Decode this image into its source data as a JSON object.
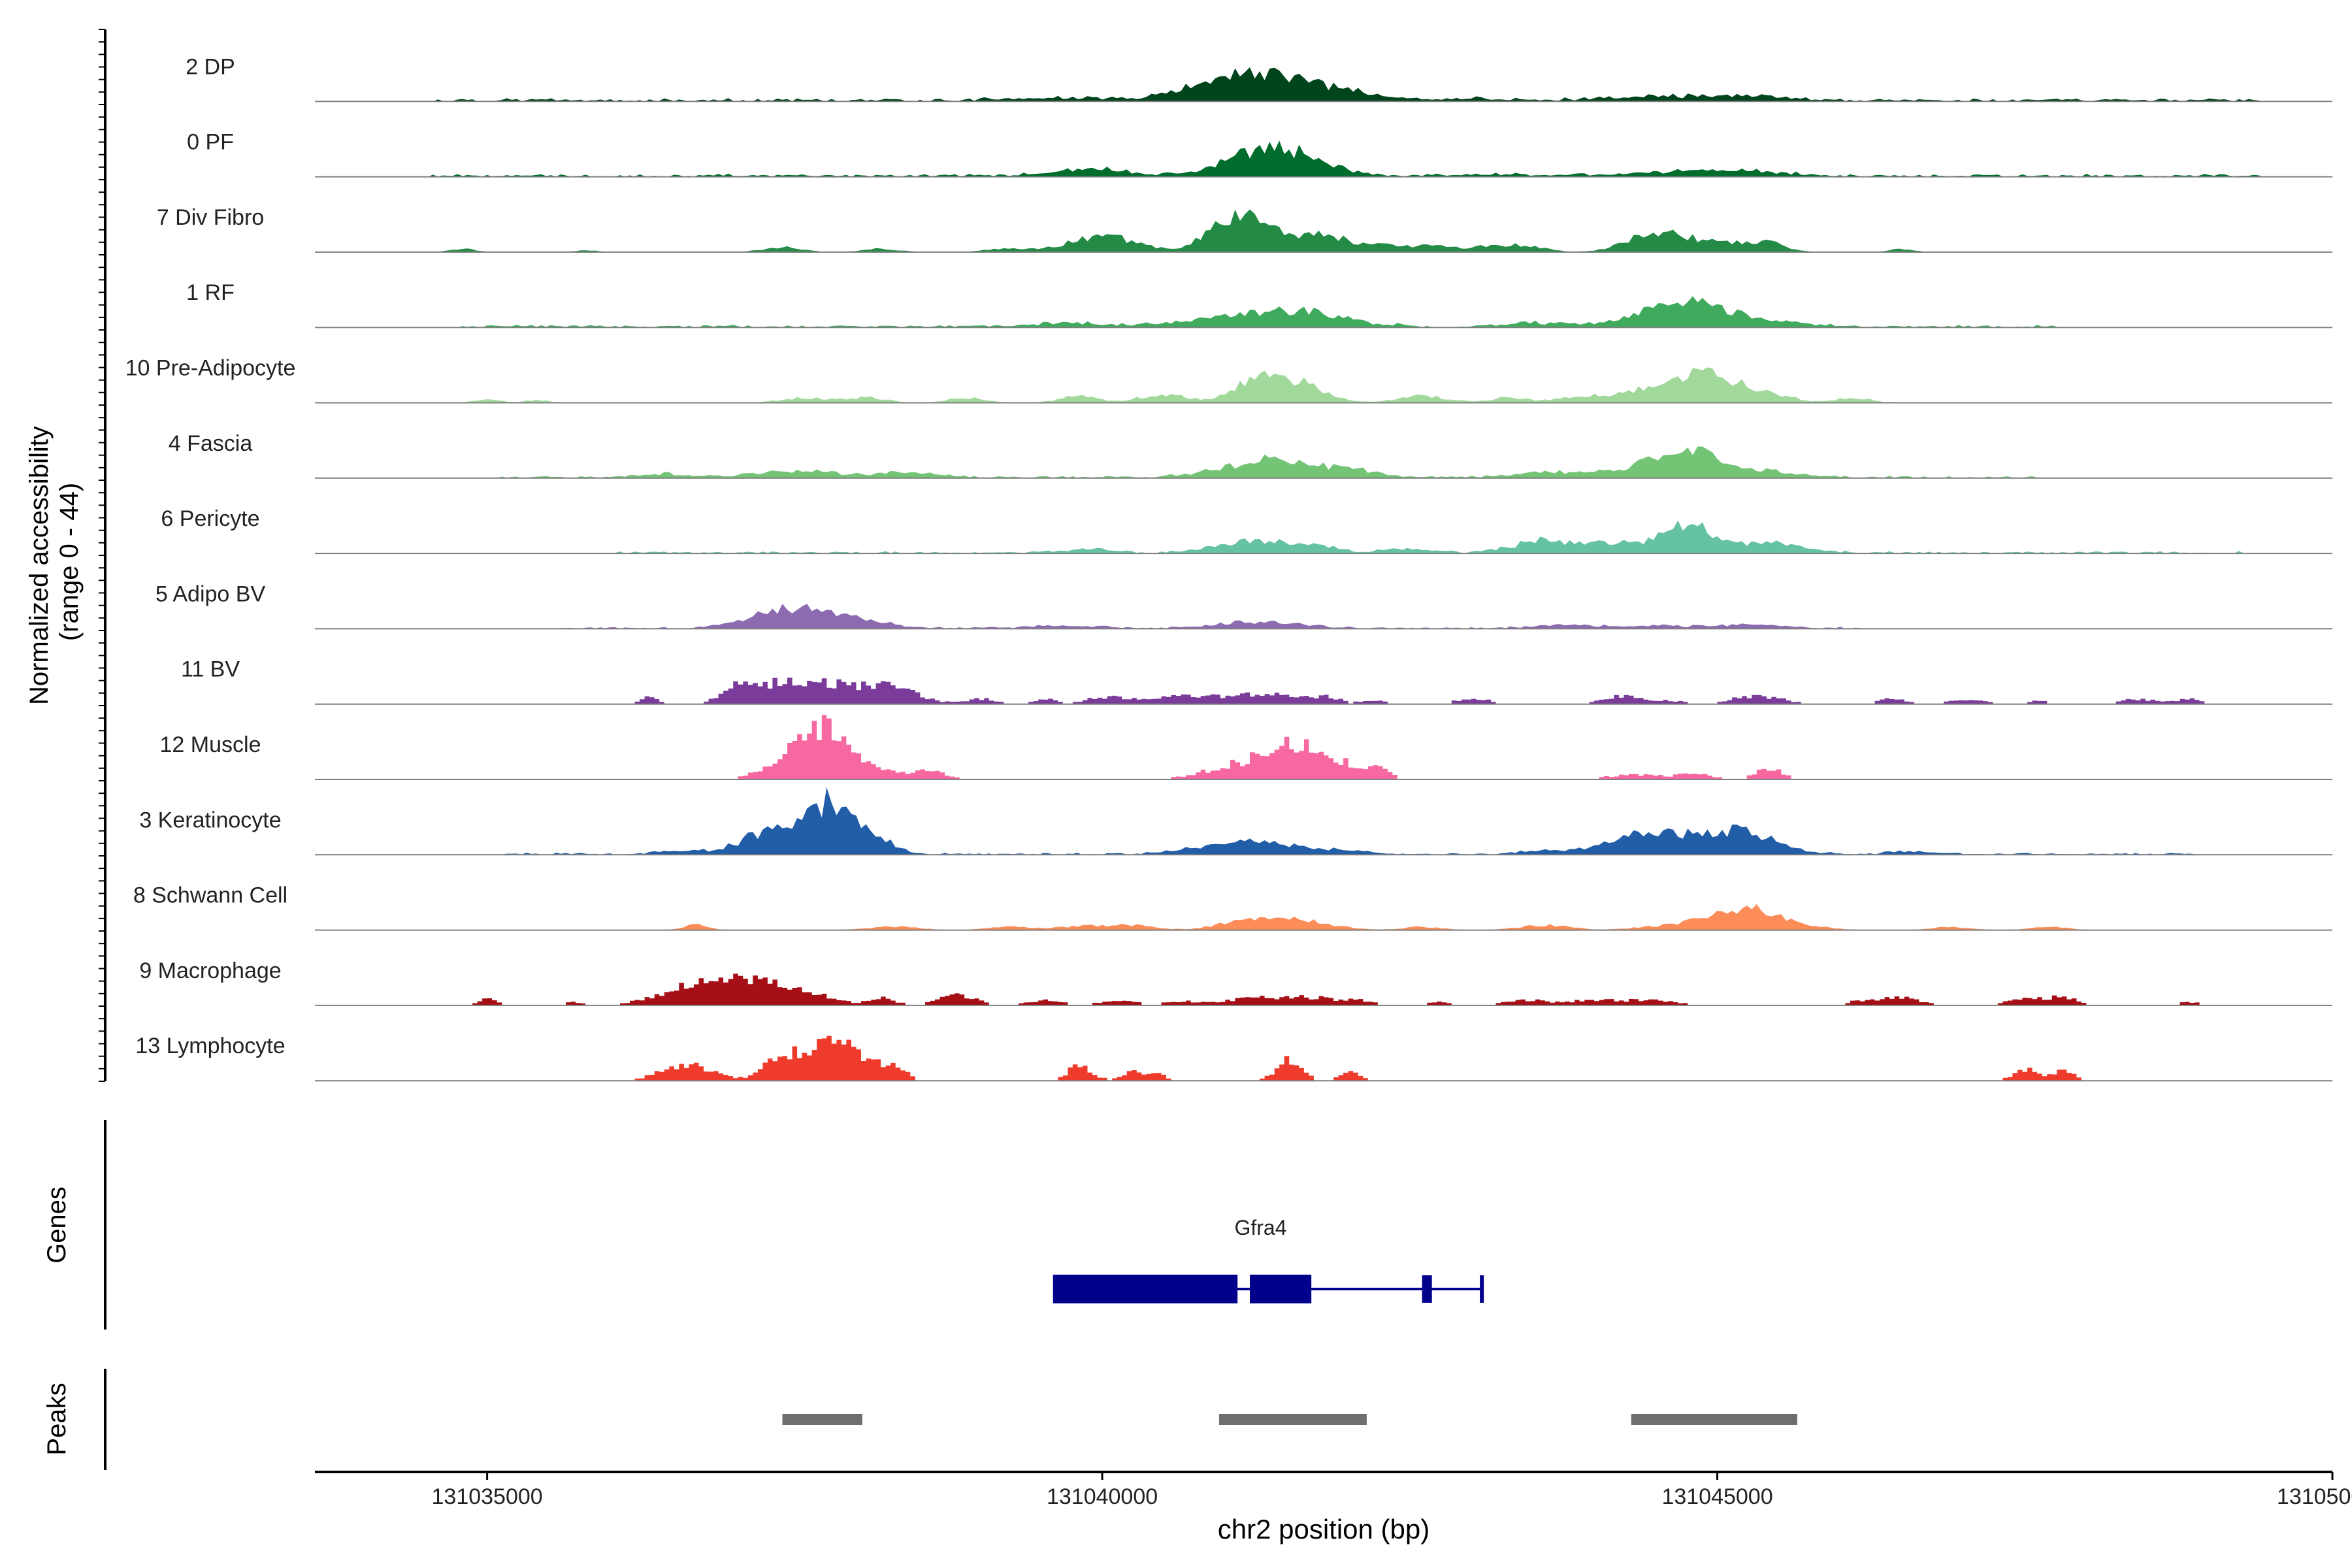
{
  "chart_data": {
    "type": "area",
    "ylabel_lines": [
      "Normalized accessibility",
      "(range 0 - 44)"
    ],
    "xlabel": "chr2 position (bp)",
    "xlim": [
      131033600,
      131050000
    ],
    "ylim": [
      0,
      44
    ],
    "x_ticks": [
      131035000,
      131040000,
      131045000,
      131050000
    ],
    "x_tick_labels": [
      "131035000",
      "131040000",
      "131045000",
      "131050000"
    ],
    "tracks": [
      {
        "name": "2 DP",
        "color": "#00441b",
        "style": "smooth",
        "noise": [
          131034500,
          131049400,
          1.6
        ],
        "peaks": [
          [
            131041400,
            500,
            13
          ],
          [
            131041000,
            300,
            5
          ],
          [
            131039600,
            400,
            1.5
          ],
          [
            131044700,
            500,
            2.5
          ],
          [
            131045400,
            300,
            1.5
          ],
          [
            131043000,
            300,
            1
          ]
        ]
      },
      {
        "name": "0 PF",
        "color": "#006d2c",
        "style": "smooth",
        "noise": [
          131034500,
          131049400,
          1.5
        ],
        "peaks": [
          [
            131041500,
            300,
            14
          ],
          [
            131041100,
            250,
            6
          ],
          [
            131039900,
            300,
            4
          ],
          [
            131044700,
            400,
            2.5
          ],
          [
            131045300,
            300,
            2
          ],
          [
            131043200,
            300,
            1
          ]
        ]
      },
      {
        "name": "7 Div Fibro",
        "color": "#238b45",
        "style": "smooth",
        "noise": [
          131034600,
          131047000,
          0
        ],
        "peaks": [
          [
            131041000,
            200,
            14
          ],
          [
            131041300,
            200,
            14
          ],
          [
            131041800,
            200,
            10
          ],
          [
            131039900,
            250,
            7
          ],
          [
            131040200,
            200,
            4
          ],
          [
            131042300,
            200,
            4
          ],
          [
            131043200,
            200,
            4
          ],
          [
            131042700,
            150,
            3
          ],
          [
            131044400,
            200,
            7
          ],
          [
            131044700,
            250,
            8
          ],
          [
            131045400,
            150,
            6
          ],
          [
            131045100,
            150,
            3
          ],
          [
            131037400,
            150,
            3
          ],
          [
            131038200,
            150,
            2
          ],
          [
            131039200,
            150,
            2
          ],
          [
            131034800,
            100,
            2
          ],
          [
            131035800,
            100,
            1
          ],
          [
            131046500,
            100,
            2
          ],
          [
            131043500,
            150,
            2
          ]
        ]
      },
      {
        "name": "1 RF",
        "color": "#41ab5d",
        "style": "smooth",
        "noise": [
          131034800,
          131047800,
          1.4
        ],
        "peaks": [
          [
            131041500,
            400,
            10
          ],
          [
            131044800,
            300,
            14
          ],
          [
            131044400,
            200,
            4
          ],
          [
            131045400,
            300,
            3
          ],
          [
            131043600,
            300,
            2
          ],
          [
            131039700,
            300,
            2
          ],
          [
            131040700,
            300,
            2
          ]
        ]
      },
      {
        "name": "10 Pre-Adipocyte",
        "color": "#a1d99b",
        "style": "smooth",
        "noise": [
          131034800,
          131046400,
          0
        ],
        "peaks": [
          [
            131041500,
            250,
            14
          ],
          [
            131041200,
            150,
            8
          ],
          [
            131040500,
            200,
            5
          ],
          [
            131044800,
            250,
            13
          ],
          [
            131044400,
            200,
            6
          ],
          [
            131045100,
            200,
            8
          ],
          [
            131043900,
            200,
            4
          ],
          [
            131042600,
            200,
            4
          ],
          [
            131043300,
            150,
            3
          ],
          [
            131037600,
            200,
            3
          ],
          [
            131038100,
            150,
            3
          ],
          [
            131038900,
            150,
            3
          ],
          [
            131039800,
            150,
            4
          ],
          [
            131035000,
            100,
            2
          ],
          [
            131035400,
            100,
            1.5
          ],
          [
            131046100,
            150,
            3
          ],
          [
            131045500,
            150,
            4
          ]
        ]
      },
      {
        "name": "4 Fascia",
        "color": "#74c476",
        "style": "smooth",
        "noise": [
          131035100,
          131047600,
          1.2
        ],
        "peaks": [
          [
            131044700,
            250,
            17
          ],
          [
            131041500,
            300,
            10
          ],
          [
            131041000,
            250,
            4
          ],
          [
            131042100,
            200,
            3
          ],
          [
            131045300,
            300,
            4
          ],
          [
            131037500,
            300,
            4
          ],
          [
            131038400,
            250,
            3
          ],
          [
            131044000,
            300,
            3
          ],
          [
            131043500,
            200,
            2
          ],
          [
            131036400,
            200,
            2
          ]
        ]
      },
      {
        "name": "6 Pericyte",
        "color": "#66c2a4",
        "style": "smooth",
        "noise": [
          131036000,
          131049400,
          1.2
        ],
        "peaks": [
          [
            131044800,
            150,
            16
          ],
          [
            131041200,
            250,
            7
          ],
          [
            131041700,
            200,
            4
          ],
          [
            131044500,
            250,
            6
          ],
          [
            131045400,
            250,
            7
          ],
          [
            131043600,
            250,
            7
          ],
          [
            131044100,
            200,
            3
          ],
          [
            131042500,
            200,
            2
          ],
          [
            131039900,
            200,
            2
          ]
        ]
      },
      {
        "name": "5 Adipo BV",
        "color": "#8c6bb1",
        "style": "smooth",
        "noise": [
          131035600,
          131046200,
          1.0
        ],
        "peaks": [
          [
            131037700,
            350,
            10
          ],
          [
            131037300,
            250,
            5
          ],
          [
            131041300,
            300,
            4
          ],
          [
            131043800,
            250,
            2
          ],
          [
            131045300,
            250,
            2
          ],
          [
            131044500,
            250,
            1.5
          ],
          [
            131039700,
            300,
            1.5
          ]
        ]
      },
      {
        "name": "11 BV",
        "color": "#7a3b9a",
        "style": "step",
        "noise": [
          131036000,
          131049000,
          0
        ],
        "peaks": [
          [
            131037700,
            400,
            12
          ],
          [
            131037000,
            120,
            9
          ],
          [
            131038300,
            200,
            6
          ],
          [
            131037300,
            150,
            5
          ],
          [
            131040600,
            250,
            5
          ],
          [
            131041300,
            300,
            6
          ],
          [
            131040000,
            150,
            4
          ],
          [
            131044200,
            150,
            5
          ],
          [
            131045300,
            200,
            5
          ],
          [
            131036300,
            80,
            4
          ],
          [
            131039000,
            120,
            3
          ],
          [
            131039500,
            100,
            3
          ],
          [
            131043000,
            150,
            3
          ],
          [
            131047000,
            150,
            3
          ],
          [
            131048400,
            150,
            3
          ],
          [
            131047600,
            100,
            2
          ],
          [
            131048800,
            100,
            3
          ],
          [
            131046400,
            120,
            3
          ],
          [
            131044600,
            100,
            2
          ],
          [
            131041800,
            120,
            3
          ],
          [
            131042200,
            100,
            2
          ]
        ]
      },
      {
        "name": "12 Muscle",
        "color": "#f768a1",
        "style": "step",
        "noise": [
          131036000,
          131049000,
          0
        ],
        "peaks": [
          [
            131037700,
            200,
            24
          ],
          [
            131037400,
            200,
            8
          ],
          [
            131038000,
            300,
            7
          ],
          [
            131041500,
            250,
            18
          ],
          [
            131041000,
            250,
            6
          ],
          [
            131041900,
            250,
            7
          ],
          [
            131042200,
            100,
            4
          ],
          [
            131038600,
            120,
            4
          ],
          [
            131044300,
            200,
            3
          ],
          [
            131044800,
            150,
            3
          ],
          [
            131045400,
            100,
            7
          ]
        ]
      },
      {
        "name": "3 Keratinocyte",
        "color": "#225ea8",
        "style": "smooth",
        "noise": [
          131035000,
          131049000,
          1.0
        ],
        "peaks": [
          [
            131037800,
            200,
            30
          ],
          [
            131037300,
            220,
            14
          ],
          [
            131038200,
            150,
            6
          ],
          [
            131041300,
            300,
            8
          ],
          [
            131040700,
            200,
            2
          ],
          [
            131042000,
            200,
            2
          ],
          [
            131044600,
            300,
            11
          ],
          [
            131044200,
            200,
            5
          ],
          [
            131045300,
            250,
            10
          ],
          [
            131045000,
            200,
            5
          ],
          [
            131036600,
            200,
            2
          ],
          [
            131043600,
            200,
            2
          ],
          [
            131046600,
            200,
            1.5
          ]
        ]
      },
      {
        "name": "8 Schwann Cell",
        "color": "#fc8d59",
        "style": "smooth",
        "noise": [
          131036600,
          131049000,
          0
        ],
        "peaks": [
          [
            131045300,
            300,
            11
          ],
          [
            131045000,
            200,
            5
          ],
          [
            131041500,
            300,
            7
          ],
          [
            131041100,
            200,
            3
          ],
          [
            131040200,
            200,
            3
          ],
          [
            131043600,
            200,
            3
          ],
          [
            131036700,
            100,
            3
          ],
          [
            131038300,
            200,
            2
          ],
          [
            131039300,
            200,
            2
          ],
          [
            131039800,
            150,
            2
          ],
          [
            131042600,
            150,
            2
          ],
          [
            131046900,
            150,
            2
          ],
          [
            131047700,
            150,
            2
          ],
          [
            131044500,
            200,
            2
          ]
        ]
      },
      {
        "name": "9 Macrophage",
        "color": "#a50f15",
        "style": "step",
        "noise": [
          131035000,
          131049000,
          0
        ],
        "peaks": [
          [
            131036700,
            300,
            11
          ],
          [
            131037400,
            300,
            10
          ],
          [
            131037000,
            200,
            7
          ],
          [
            131038200,
            100,
            4
          ],
          [
            131038800,
            150,
            6
          ],
          [
            131041300,
            300,
            5
          ],
          [
            131041800,
            200,
            3
          ],
          [
            131035000,
            80,
            4
          ],
          [
            131035700,
            80,
            2
          ],
          [
            131039500,
            150,
            3
          ],
          [
            131040100,
            150,
            3
          ],
          [
            131040600,
            150,
            2
          ],
          [
            131043400,
            150,
            3
          ],
          [
            131044000,
            300,
            3
          ],
          [
            131044500,
            200,
            2
          ],
          [
            131046200,
            150,
            3
          ],
          [
            131046500,
            150,
            4
          ],
          [
            131047500,
            150,
            4
          ],
          [
            131047800,
            100,
            5
          ],
          [
            131048800,
            100,
            2
          ],
          [
            131042100,
            100,
            2
          ],
          [
            131042700,
            100,
            2
          ]
        ]
      },
      {
        "name": "13 Lymphocyte",
        "color": "#ef3b2c",
        "style": "step",
        "noise": [
          131036000,
          131048000,
          0
        ],
        "peaks": [
          [
            131037900,
            200,
            19
          ],
          [
            131037500,
            200,
            15
          ],
          [
            131036600,
            200,
            10
          ],
          [
            131038300,
            80,
            9
          ],
          [
            131037300,
            80,
            5
          ],
          [
            131039800,
            100,
            9
          ],
          [
            131040200,
            80,
            5
          ],
          [
            131040400,
            80,
            5
          ],
          [
            131041500,
            100,
            12
          ],
          [
            131042000,
            80,
            5
          ],
          [
            131047500,
            100,
            7
          ],
          [
            131047800,
            80,
            6
          ]
        ]
      }
    ],
    "genes_label": "Genes",
    "gene": {
      "name": "Gfra4",
      "start": 131039600,
      "end": 131043100,
      "exons": [
        [
          131039600,
          131041100
        ],
        [
          131041200,
          131041700
        ],
        [
          131042600,
          131042680
        ],
        [
          131043070,
          131043100
        ]
      ],
      "color": "#00008b"
    },
    "peaks_label": "Peaks",
    "peak_regions": [
      [
        131037400,
        131038050
      ],
      [
        131040950,
        131042150
      ],
      [
        131044300,
        131045650
      ]
    ],
    "peak_color": "#6e6e6e"
  }
}
